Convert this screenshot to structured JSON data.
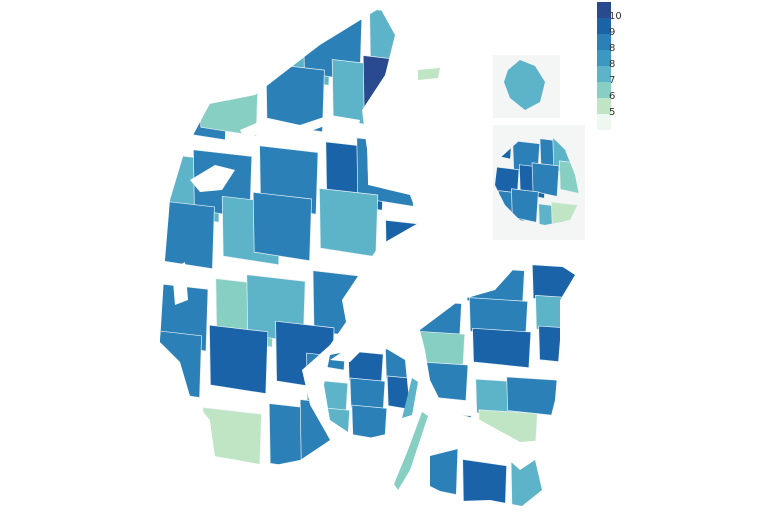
{
  "legend": {
    "colors": [
      "#2a4a90",
      "#1a63a8",
      "#2b80b8",
      "#3c97c3",
      "#5db4c8",
      "#88cfc3",
      "#bfe5c4",
      "#eef7f0"
    ],
    "labels": [
      "10",
      "9",
      "8",
      "8",
      "7",
      "6",
      "5"
    ]
  },
  "regions": {
    "jutland": [
      8,
      8,
      7,
      8,
      7,
      8,
      6,
      8,
      7,
      10,
      7,
      8,
      8,
      9,
      8,
      8,
      7,
      8,
      7,
      9,
      8,
      6,
      7,
      8,
      7,
      8,
      9,
      9,
      8,
      8,
      6,
      5,
      8,
      8,
      7
    ],
    "funen": [
      8,
      9,
      8,
      7,
      8,
      9,
      7,
      8
    ],
    "zealand": [
      10,
      8,
      9,
      8,
      8,
      7,
      6,
      9,
      9,
      8,
      7,
      8,
      8,
      5
    ],
    "lolland_falster": [
      8,
      9,
      7
    ],
    "bornholm": [
      7
    ],
    "copenhagen": [
      9,
      8,
      8,
      7,
      9,
      9,
      8,
      6,
      8,
      8,
      7,
      5
    ]
  }
}
